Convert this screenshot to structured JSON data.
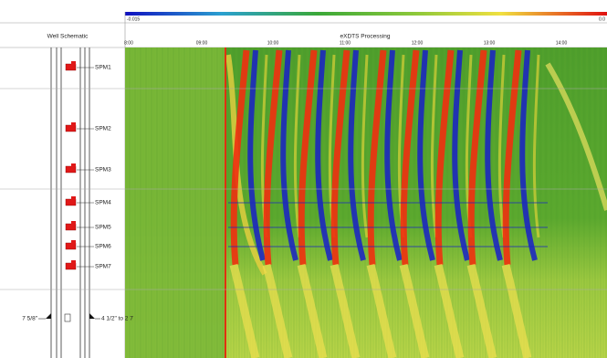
{
  "colorbar": {
    "min_label": "-0.015",
    "max_label": "0.0"
  },
  "headers": {
    "left": "Well Schematic",
    "right": "eXDTS Processing"
  },
  "time_ticks": [
    "8:00",
    "09:00",
    "10:00",
    "11:00",
    "12:00",
    "13:00",
    "14:00"
  ],
  "mandrels": [
    "SPM1",
    "SPM2",
    "SPM3",
    "SPM4",
    "SPM5",
    "SPM6",
    "SPM7"
  ],
  "labels": {
    "casing": "7 5/8\"",
    "tubing": "4 1/2\" to 2 7"
  }
}
